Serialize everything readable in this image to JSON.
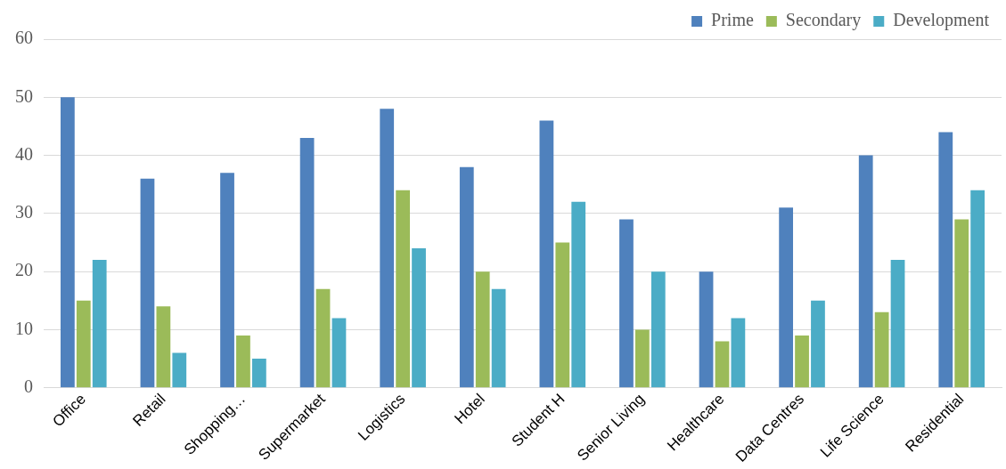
{
  "chart_data": {
    "type": "bar",
    "categories": [
      "Office",
      "Retail",
      "Shopping…",
      "Supermarket",
      "Logistics",
      "Hotel",
      "Student H",
      "Senior Living",
      "Healthcare",
      "Data Centres",
      "Life Science",
      "Residential"
    ],
    "series": [
      {
        "name": "Prime",
        "color": "#4f81bd",
        "values": [
          50,
          36,
          37,
          43,
          48,
          38,
          46,
          29,
          20,
          31,
          40,
          44
        ]
      },
      {
        "name": "Secondary",
        "color": "#9bbb59",
        "values": [
          15,
          14,
          9,
          17,
          34,
          20,
          25,
          10,
          8,
          9,
          13,
          29
        ]
      },
      {
        "name": "Development",
        "color": "#4bacc6",
        "values": [
          22,
          6,
          5,
          12,
          24,
          17,
          32,
          20,
          12,
          15,
          22,
          34
        ]
      }
    ],
    "ylim": [
      0,
      60
    ],
    "yticks": [
      0,
      10,
      20,
      30,
      40,
      50,
      60
    ],
    "grid": "y",
    "legend": "top right"
  }
}
